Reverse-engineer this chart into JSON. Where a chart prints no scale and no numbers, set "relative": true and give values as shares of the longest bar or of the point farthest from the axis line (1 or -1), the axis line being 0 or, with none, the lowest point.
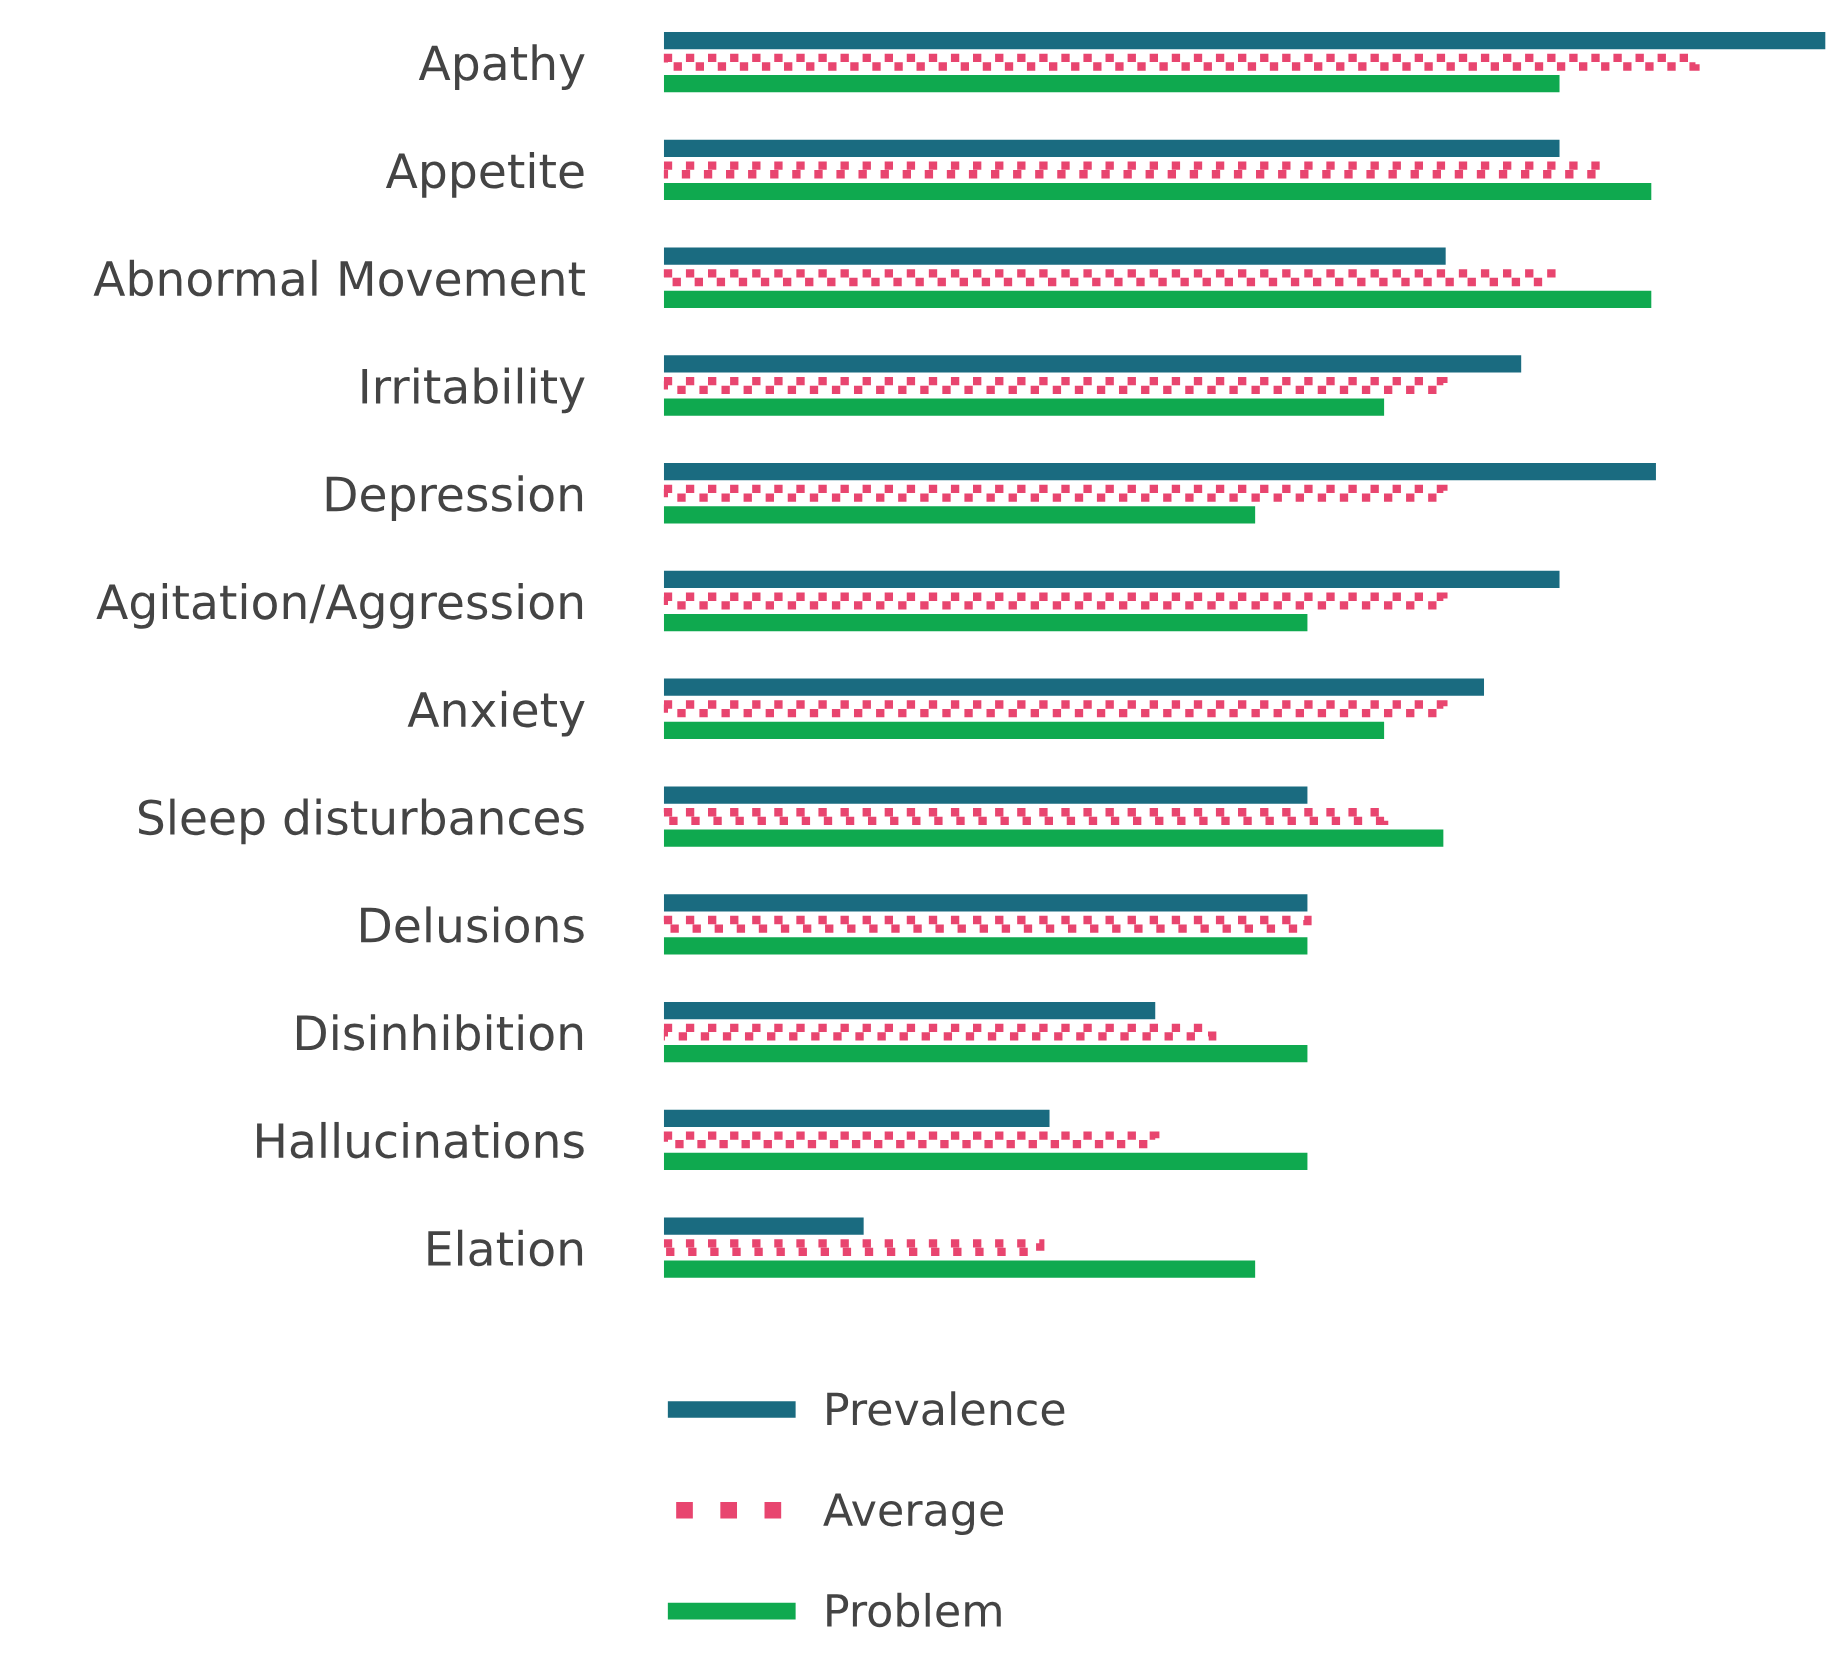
{
  "chart_data": {
    "type": "bar",
    "orientation": "horizontal",
    "relative": true,
    "legend": "bottom",
    "grid": false,
    "categories": [
      "Apathy",
      "Appetite",
      "Abnormal Movement",
      "Irritability",
      "Depression",
      "Agitation/Aggression",
      "Anxiety",
      "Sleep disturbances",
      "Delusions",
      "Disinhibition",
      "Hallucinations",
      "Elation"
    ],
    "series": [
      {
        "name": "Prevalence",
        "color": "#1a6b80",
        "values": [
          1.0,
          0.771,
          0.673,
          0.738,
          0.854,
          0.771,
          0.706,
          0.554,
          0.554,
          0.423,
          0.332,
          0.172
        ]
      },
      {
        "name": "Average",
        "color": "#e8456f",
        "line_style": "dotted",
        "values": [
          0.888,
          0.806,
          0.764,
          0.671,
          0.671,
          0.671,
          0.671,
          0.62,
          0.554,
          0.472,
          0.423,
          0.324
        ]
      },
      {
        "name": "Problem",
        "color": "#0fa94f",
        "values": [
          0.771,
          0.85,
          0.85,
          0.62,
          0.509,
          0.554,
          0.62,
          0.671,
          0.554,
          0.554,
          0.554,
          0.509
        ]
      }
    ]
  }
}
